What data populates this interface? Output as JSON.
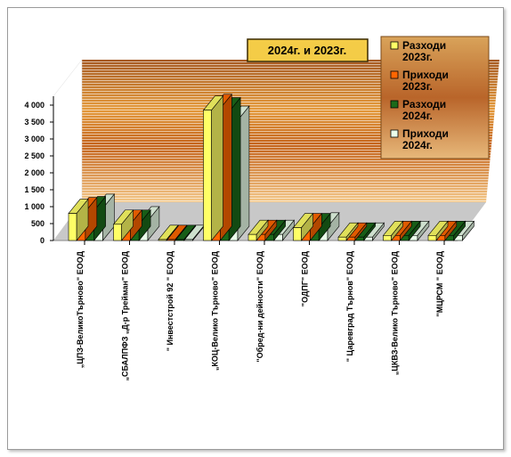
{
  "chart_data": {
    "type": "bar",
    "title": "2024г. и 2023г.",
    "xlabel": "",
    "ylabel": "",
    "ylim": [
      0,
      4000
    ],
    "y_ticks": [
      "0",
      "500",
      "1 000",
      "1 500",
      "2 000",
      "2 500",
      "3 000",
      "3 500",
      "4 000"
    ],
    "grid": false,
    "legend_position": "top-right",
    "categories": [
      "„ЦПЗ-ВеликоТърново\" ЕООД",
      "„СБАЛПФЗ „Д-р Трейман\" ЕООД",
      "\" Инвестстрой 92 \" ЕООД",
      "„КОЦ-Велико Търново\" ЕООД",
      "\"Обред-ни дейности\" ЕООД",
      "\"ОДПГ\" ЕООД",
      "\" Царевград Търнов\" ЕООД",
      "„ЦКВЗ-Велико Търново\" ЕООД",
      "\"МЦРСМ \" ЕООД"
    ],
    "series": [
      {
        "name": "Разходи 2023г.",
        "color": "#ffff66",
        "values": [
          800,
          480,
          30,
          3850,
          180,
          380,
          100,
          150,
          150
        ]
      },
      {
        "name": "Приходи 2023г.",
        "color": "#ff6600",
        "values": [
          850,
          480,
          30,
          3900,
          180,
          380,
          100,
          150,
          150
        ]
      },
      {
        "name": "Разходи 2024г.",
        "color": "#1a6a1a",
        "values": [
          880,
          480,
          30,
          3800,
          180,
          380,
          100,
          150,
          150
        ]
      },
      {
        "name": "Приходи 2024г.",
        "color": "#eaffea",
        "values": [
          950,
          580,
          30,
          3550,
          180,
          400,
          100,
          150,
          150
        ]
      }
    ]
  }
}
